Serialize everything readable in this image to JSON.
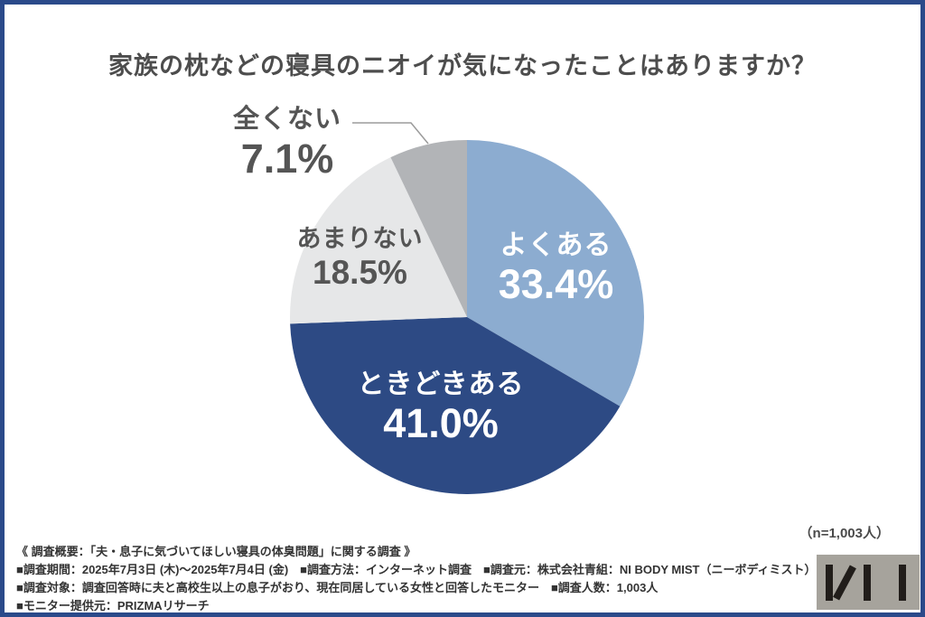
{
  "title": "家族の枕などの寝具のニオイが気になったことはありますか？",
  "colors": {
    "frame": "#2B4A8A",
    "title_text": "#4d4d4d",
    "leader_line": "#9b9b9b",
    "survey_text": "#333333",
    "logo_box": "#A6A39C",
    "logo_bars": "#211D1A"
  },
  "chart_data": {
    "type": "pie",
    "title": "家族の枕などの寝具のニオイが気になったことはありますか？",
    "n_note": "（n=1,003人）",
    "start_angle_deg": 0,
    "direction": "clockwise",
    "legend": "none",
    "slices": [
      {
        "label": "よくある",
        "value": 33.4,
        "pct_label": "33.4%",
        "color": "#8CACD0",
        "text_color": "#ffffff"
      },
      {
        "label": "ときどきある",
        "value": 41.0,
        "pct_label": "41.0%",
        "color": "#2D4A84",
        "text_color": "#ffffff"
      },
      {
        "label": "あまりない",
        "value": 18.5,
        "pct_label": "18.5%",
        "color": "#E6E7E8",
        "text_color": "#555555"
      },
      {
        "label": "全くない",
        "value": 7.1,
        "pct_label": "7.1%",
        "color": "#B2B4B7",
        "text_color": "#555555"
      }
    ]
  },
  "survey": {
    "heading": "《 調査概要：「夫・息子に気づいてほしい寝具の体臭問題」に関する調査 》",
    "lines": [
      "■調査期間：2025年7月3日 (木)～2025年7月4日 (金)　■調査方法：インターネット調査　■調査元：株式会社青組：NI BODY MIST（ニーボディミスト）",
      "■調査対象：調査回答時に夫と高校生以上の息子がおり、現在同居している女性と回答したモニター　■調査人数：1,003人",
      "■モニター提供元：PRIZMAリサーチ"
    ]
  },
  "logo": {
    "name": "ni-logo"
  }
}
